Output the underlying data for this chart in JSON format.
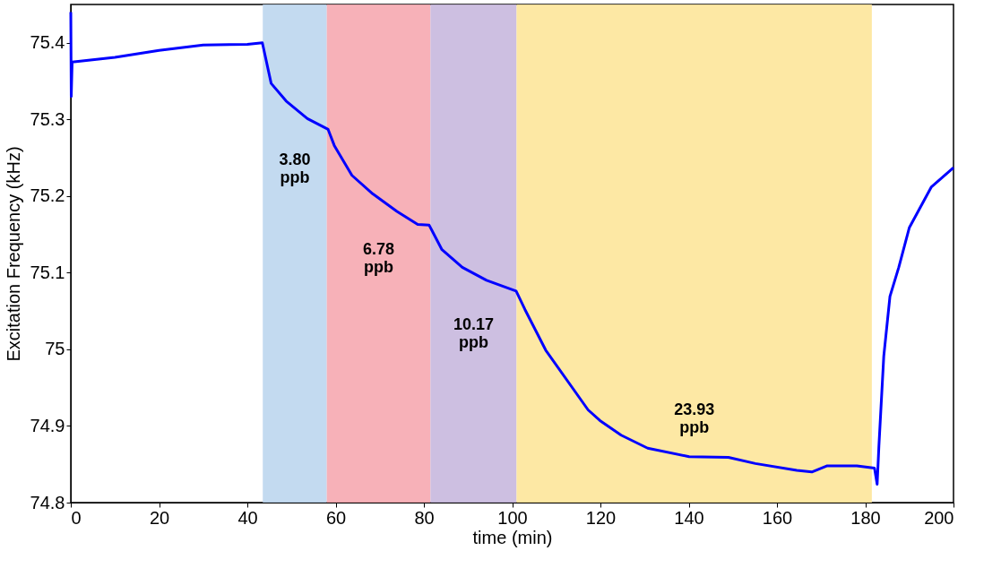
{
  "chart_data": {
    "type": "line",
    "xlabel": "time (min)",
    "ylabel": "Excitation Frequency (kHz)",
    "x": [
      0,
      0.1,
      0.3,
      10,
      20,
      30,
      40,
      43.4,
      45.4,
      48.8,
      53.6,
      58.3,
      59.7,
      63.7,
      68.4,
      73.9,
      78.6,
      81.2,
      84.1,
      88.7,
      94.2,
      100.9,
      102.9,
      107.6,
      117.2,
      119.9,
      124.7,
      130.7,
      140.1,
      149,
      155.1,
      164.5,
      167.9,
      171.4,
      178.1,
      182.1,
      182.7,
      183.1,
      184.2,
      185.6,
      187.6,
      190,
      195,
      200
    ],
    "series": [
      {
        "color": "#0000ff",
        "values": [
          75.44,
          75.33,
          75.375,
          75.381,
          75.39,
          75.397,
          75.398,
          75.4,
          75.347,
          75.324,
          75.301,
          75.287,
          75.266,
          75.227,
          75.203,
          75.18,
          75.163,
          75.162,
          75.13,
          75.107,
          75.09,
          75.076,
          75.052,
          74.999,
          74.921,
          74.907,
          74.888,
          74.871,
          74.86,
          74.859,
          74.851,
          74.842,
          74.84,
          74.848,
          74.848,
          74.845,
          74.824,
          74.874,
          74.991,
          75.069,
          75.107,
          75.159,
          75.212,
          75.237
        ]
      }
    ],
    "xlim": [
      0,
      200
    ],
    "xticks": [
      0,
      20,
      40,
      60,
      80,
      100,
      120,
      140,
      160,
      180,
      200
    ],
    "ylim": [
      74.8,
      75.45
    ],
    "yticks": [
      74.8,
      74.9,
      {
        "value": 75,
        "label": "75"
      },
      75.1,
      75.2,
      75.3,
      75.4
    ],
    "bands": [
      {
        "axis": "x",
        "from": 43.5,
        "to": 58,
        "color": "#bcd6ee",
        "label": "3.80 ppb"
      },
      {
        "axis": "x",
        "from": 58,
        "to": 81.5,
        "color": "#f6a8b0",
        "label": "6.78 ppb"
      },
      {
        "axis": "x",
        "from": 81.5,
        "to": 101,
        "color": "#c8b8de",
        "label": "10.17 ppb"
      },
      {
        "axis": "x",
        "from": 101,
        "to": 181.5,
        "color": "#fde69a",
        "label": "23.93 ppb"
      }
    ],
    "grid": false,
    "marker": "none",
    "line_style": "solid"
  }
}
